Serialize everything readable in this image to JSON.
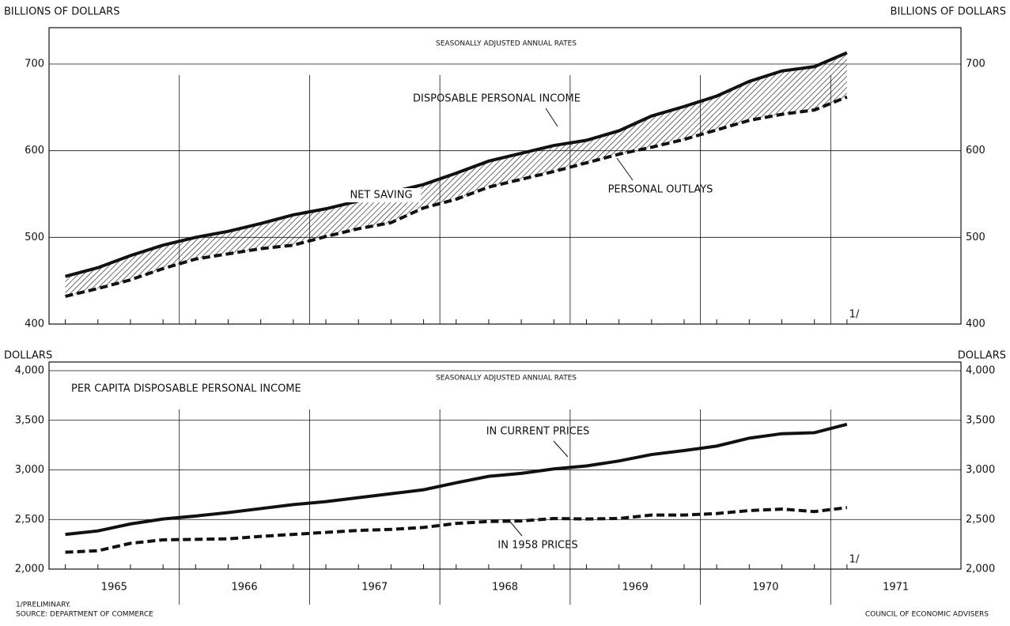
{
  "chart_data": [
    {
      "type": "line",
      "subtitle": "SEASONALLY ADJUSTED ANNUAL RATES",
      "y_label": "BILLIONS OF DOLLARS",
      "annotations": [
        "NET SAVING"
      ],
      "note_mark": "1/",
      "x": [
        1965.125,
        1965.375,
        1965.625,
        1965.875,
        1966.125,
        1966.375,
        1966.625,
        1966.875,
        1967.125,
        1967.375,
        1967.625,
        1967.875,
        1968.125,
        1968.375,
        1968.625,
        1968.875,
        1969.125,
        1969.375,
        1969.625,
        1969.875,
        1970.125,
        1970.375,
        1970.625,
        1970.875,
        1971.125
      ],
      "xlim": [
        1965,
        1972
      ],
      "xgrid": [
        1966,
        1967,
        1968,
        1969,
        1970,
        1971
      ],
      "ylim": [
        358,
        748
      ],
      "yticks": [
        400,
        500,
        600,
        700
      ],
      "series": [
        {
          "name": "DISPOSABLE PERSONAL INCOME",
          "color": "#111111",
          "style": "solid",
          "values": [
            455,
            465,
            479,
            491,
            500,
            507,
            516,
            526,
            533,
            542,
            552,
            561,
            574,
            588,
            597,
            606,
            612,
            623,
            640,
            651,
            663,
            680,
            692,
            697,
            713
          ]
        },
        {
          "name": "PERSONAL OUTLAYS",
          "color": "#111111",
          "style": "dashed",
          "values": [
            432,
            441,
            451,
            464,
            475,
            481,
            487,
            491,
            501,
            510,
            517,
            534,
            544,
            558,
            567,
            576,
            586,
            596,
            604,
            613,
            624,
            635,
            642,
            647,
            662
          ]
        }
      ]
    },
    {
      "type": "line",
      "title": "PER CAPITA DISPOSABLE PERSONAL INCOME",
      "subtitle": "SEASONALLY ADJUSTED ANNUAL RATES",
      "y_label": "DOLLARS",
      "note_mark": "1/",
      "x": [
        1965.125,
        1965.375,
        1965.625,
        1965.875,
        1966.125,
        1966.375,
        1966.625,
        1966.875,
        1967.125,
        1967.375,
        1967.625,
        1967.875,
        1968.125,
        1968.375,
        1968.625,
        1968.875,
        1969.125,
        1969.375,
        1969.625,
        1969.875,
        1970.125,
        1970.375,
        1970.625,
        1970.875,
        1971.125
      ],
      "xlim": [
        1965,
        1972
      ],
      "xgrid": [
        1966,
        1967,
        1968,
        1969,
        1970,
        1971
      ],
      "xticks": [
        {
          "value": 1965.5,
          "label": "1965"
        },
        {
          "value": 1966.5,
          "label": "1966"
        },
        {
          "value": 1967.5,
          "label": "1967"
        },
        {
          "value": 1968.5,
          "label": "1968"
        },
        {
          "value": 1969.5,
          "label": "1969"
        },
        {
          "value": 1970.5,
          "label": "1970"
        },
        {
          "value": 1971.5,
          "label": "1971"
        }
      ],
      "ylim": [
        2000,
        4000
      ],
      "yticks": [
        {
          "value": 2000,
          "label": "2,000"
        },
        {
          "value": 2500,
          "label": "2,500"
        },
        {
          "value": 3000,
          "label": "3,000"
        },
        {
          "value": 3500,
          "label": "3,500"
        },
        {
          "value": 4000,
          "label": "4,000"
        }
      ],
      "series": [
        {
          "name": "IN CURRENT PRICES",
          "color": "#111111",
          "style": "solid",
          "values": [
            2350,
            2385,
            2455,
            2505,
            2535,
            2570,
            2610,
            2650,
            2680,
            2720,
            2760,
            2800,
            2870,
            2935,
            2965,
            3010,
            3040,
            3090,
            3155,
            3195,
            3240,
            3320,
            3365,
            3375,
            3460
          ]
        },
        {
          "name": "IN 1958 PRICES",
          "color": "#111111",
          "style": "dashed",
          "values": [
            2170,
            2185,
            2260,
            2295,
            2300,
            2305,
            2330,
            2350,
            2370,
            2390,
            2400,
            2420,
            2460,
            2480,
            2485,
            2510,
            2505,
            2510,
            2545,
            2545,
            2560,
            2590,
            2605,
            2580,
            2620
          ]
        }
      ]
    }
  ],
  "footnote": "1/PRELIMINARY.",
  "source": "SOURCE: DEPARTMENT OF COMMERCE",
  "credit": "COUNCIL OF ECONOMIC ADVISERS"
}
